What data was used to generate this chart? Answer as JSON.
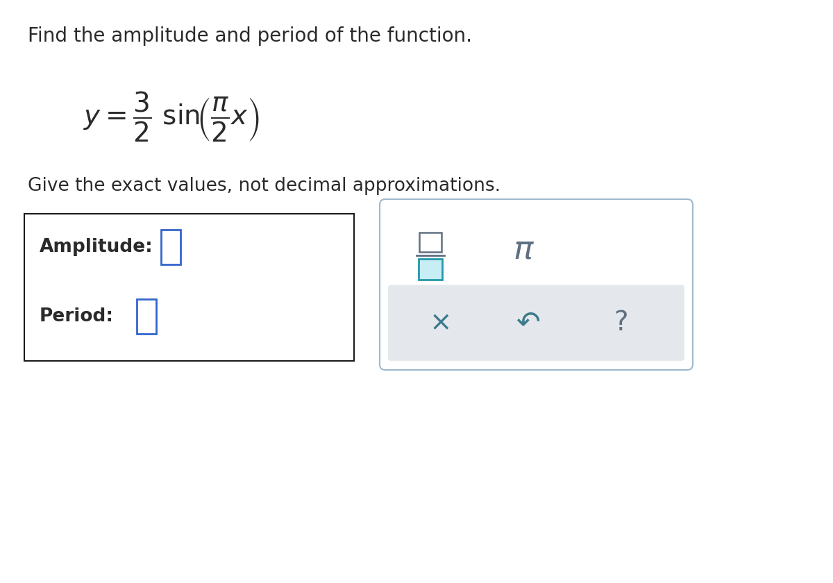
{
  "title": "Find the amplitude and period of the function.",
  "subtitle": "Give the exact values, not decimal approximations.",
  "amplitude_label": "Amplitude:",
  "period_label": "Period:",
  "bg_color": "#ffffff",
  "text_color": "#2a2a2a",
  "box_border_color": "#1a1a1a",
  "input_box_color": "#3366cc",
  "panel_bg": "#e4e8ec",
  "panel_border": "#a0b8cc",
  "frac_top_color": "#607080",
  "frac_line_color": "#607080",
  "frac_bot_border": "#2299aa",
  "frac_bot_fill": "#c8eef5",
  "pi_color": "#607080",
  "sym_color": "#3a7a8a",
  "title_fontsize": 20,
  "equation_fontsize": 28,
  "subtitle_fontsize": 19,
  "label_fontsize": 19
}
